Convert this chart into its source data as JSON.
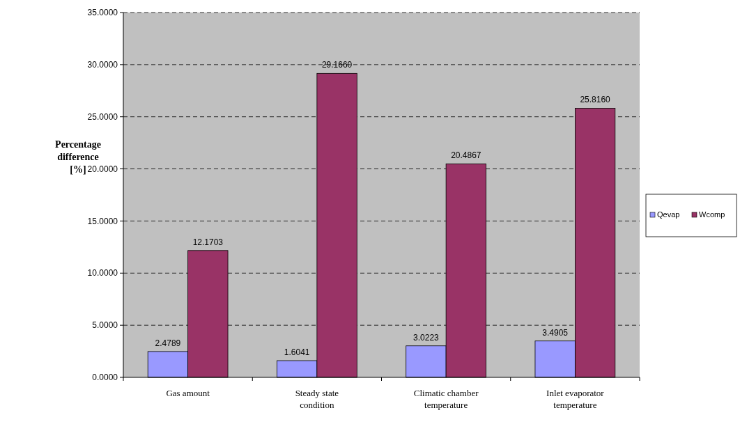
{
  "chart_data": {
    "type": "bar",
    "ylabel": "Percentage difference [%]",
    "categories": [
      "Gas amount",
      "Steady state condition",
      "Climatic chamber temperature",
      "Inlet evaporator temperature"
    ],
    "series": [
      {
        "name": "Qevap",
        "color": "#9999ff",
        "values": [
          2.4789,
          1.6041,
          3.0223,
          3.4905
        ],
        "value_labels": [
          "2.4789",
          "1.6041",
          "3.0223",
          "3.4905"
        ]
      },
      {
        "name": "Wcomp",
        "color": "#993366",
        "values": [
          12.1703,
          29.166,
          20.4867,
          25.816
        ],
        "value_labels": [
          "12.1703",
          "29.1660",
          "20.4867",
          "25.8160"
        ]
      }
    ],
    "ylim": [
      0,
      35
    ],
    "yticks": [
      {
        "value": 0,
        "label": "0.0000"
      },
      {
        "value": 5,
        "label": "5.0000"
      },
      {
        "value": 10,
        "label": "10.0000"
      },
      {
        "value": 15,
        "label": "15.0000"
      },
      {
        "value": 20,
        "label": "20.0000"
      },
      {
        "value": 25,
        "label": "25.0000"
      },
      {
        "value": 30,
        "label": "30.0000"
      },
      {
        "value": 35,
        "label": "35.0000"
      }
    ],
    "grid": "y",
    "line_style": "dashed",
    "legend": "right"
  }
}
